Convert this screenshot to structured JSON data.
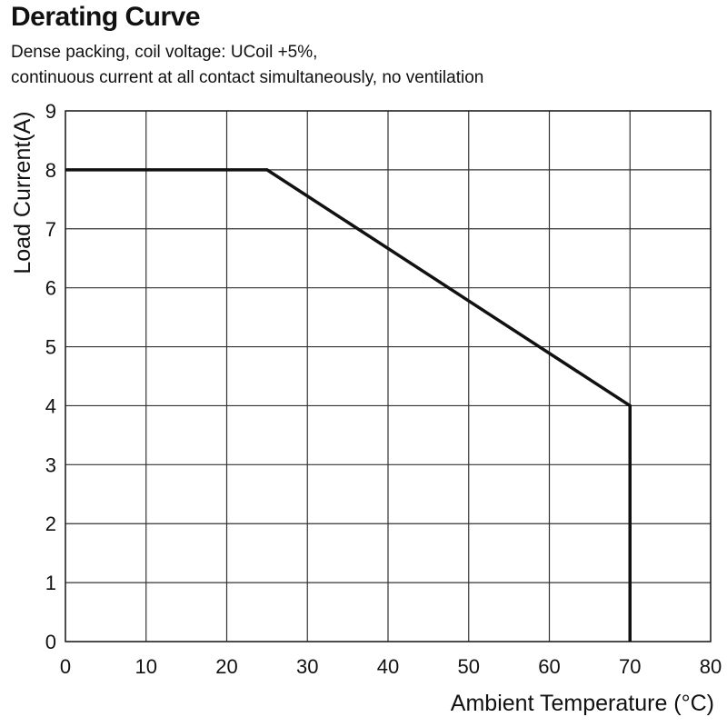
{
  "title": "Derating Curve",
  "subtitle_lines": [
    "Dense packing, coil voltage: UCoil +5%,",
    "continuous current at all contact simultaneously, no ventilation"
  ],
  "chart_data": {
    "type": "line",
    "title": "Derating Curve",
    "xlabel": "Ambient Temperature (°C)",
    "ylabel": "Load Current(A)",
    "xlim": [
      0,
      80
    ],
    "ylim": [
      0,
      9
    ],
    "xticks": [
      "0",
      "10",
      "20",
      "30",
      "40",
      "50",
      "60",
      "70",
      "80"
    ],
    "yticks": [
      "0",
      "1",
      "2",
      "3",
      "4",
      "5",
      "6",
      "7",
      "8",
      "9"
    ],
    "grid": true,
    "series": [
      {
        "x": [
          0,
          25,
          70,
          70
        ],
        "y": [
          8,
          8,
          4,
          0
        ]
      }
    ]
  }
}
